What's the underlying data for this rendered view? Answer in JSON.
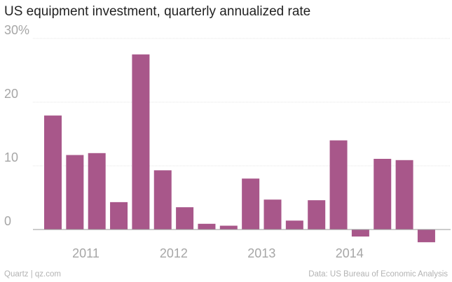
{
  "title": "US equipment investment, quarterly annualized rate",
  "footer": {
    "source_left": "Quartz | qz.com",
    "source_right": "Data: US Bureau of Economic Analysis"
  },
  "colors": {
    "bar": "#a8578a",
    "grid": "#e6e6e6",
    "zero": "#999999"
  },
  "chart_data": {
    "type": "bar",
    "title": "US equipment investment, quarterly annualized rate",
    "xlabel": "",
    "ylabel": "",
    "ylim": [
      0,
      30
    ],
    "yticks": [
      0,
      10,
      20,
      30
    ],
    "ytick_labels": [
      "0",
      "10",
      "20",
      "30%"
    ],
    "categories": [
      "2011 Q1",
      "2011 Q2",
      "2011 Q3",
      "2011 Q4",
      "2012 Q1",
      "2012 Q2",
      "2012 Q3",
      "2012 Q4",
      "2013 Q1",
      "2013 Q2",
      "2013 Q3",
      "2013 Q4",
      "2014 Q1",
      "2014 Q2",
      "2014 Q3",
      "2014 Q4",
      "2015 Q1",
      "2015 Q2"
    ],
    "values": [
      17.9,
      11.7,
      12.0,
      4.3,
      27.5,
      9.3,
      3.5,
      0.9,
      0.6,
      8.0,
      4.7,
      1.4,
      4.6,
      14.0,
      -1.1,
      11.1,
      10.9,
      -2.0
    ],
    "xtick_labels": [
      "2011",
      "2012",
      "2013",
      "2014"
    ],
    "xtick_positions": [
      1.5,
      5.5,
      9.5,
      13.5
    ]
  }
}
